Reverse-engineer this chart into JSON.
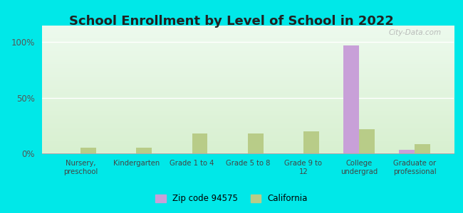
{
  "title": "School Enrollment by Level of School in 2022",
  "categories": [
    "Nursery,\npreschool",
    "Kindergarten",
    "Grade 1 to 4",
    "Grade 5 to 8",
    "Grade 9 to\n12",
    "College\nundergrad",
    "Graduate or\nprofessional"
  ],
  "zip_values": [
    0.0,
    0.0,
    0.0,
    0.0,
    0.0,
    97.0,
    3.0
  ],
  "ca_values": [
    5.0,
    5.0,
    18.0,
    18.0,
    20.0,
    22.0,
    8.0
  ],
  "zip_color": "#c8a0d8",
  "ca_color": "#b8cc88",
  "zip_label": "Zip code 94575",
  "ca_label": "California",
  "background_outer": "#00e8e8",
  "background_inner_top": "#edfaee",
  "background_inner_bot": "#d8f0d0",
  "ylim": [
    0,
    115
  ],
  "yticks": [
    0,
    50,
    100
  ],
  "ytick_labels": [
    "0%",
    "50%",
    "100%"
  ],
  "title_fontsize": 13,
  "watermark": "City-Data.com",
  "bar_width": 0.28
}
